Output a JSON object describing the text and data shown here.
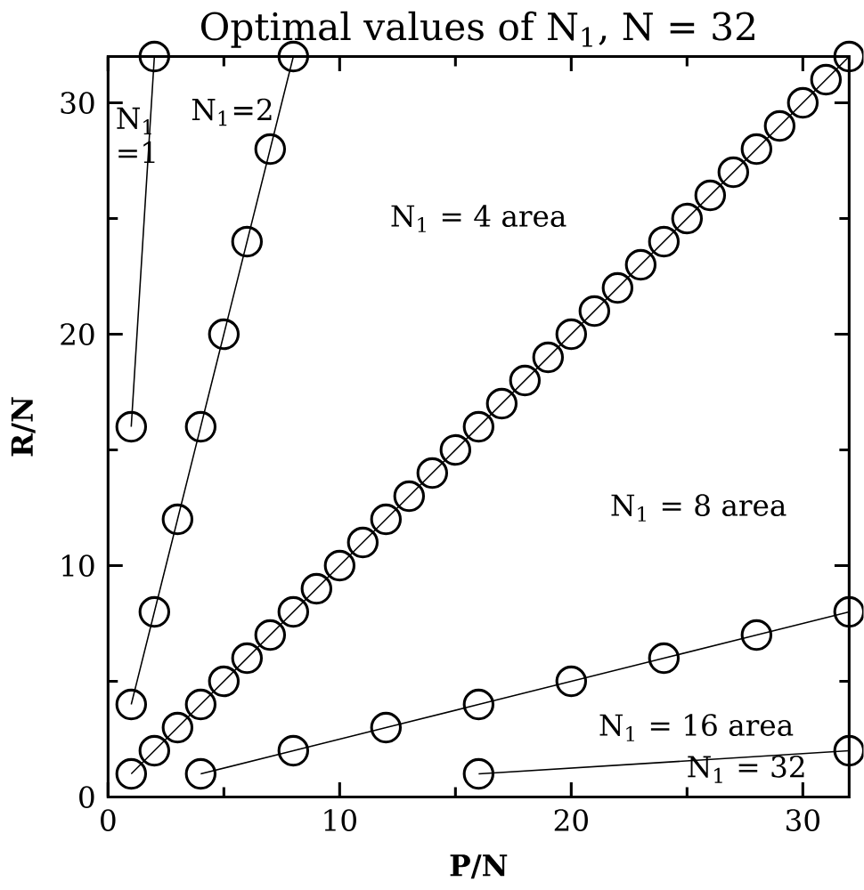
{
  "chart_data": {
    "type": "line",
    "title": "Optimal values of N$_{1}$, N = 32",
    "xlabel": "P/N",
    "ylabel": "R/N",
    "xlim": [
      0,
      32
    ],
    "ylim": [
      0,
      32
    ],
    "xticks": [
      0,
      10,
      20,
      30
    ],
    "yticks": [
      0,
      10,
      20,
      30
    ],
    "marker": "circle",
    "line_style": "solid",
    "grid": false,
    "series": [
      {
        "color": "#000000",
        "x": [
          1,
          2
        ],
        "values": [
          16,
          32
        ]
      },
      {
        "color": "#000000",
        "x": [
          1,
          2,
          3,
          4,
          5,
          6,
          7,
          8
        ],
        "values": [
          4,
          8,
          12,
          16,
          20,
          24,
          28,
          32
        ]
      },
      {
        "color": "#000000",
        "x": [
          1,
          2,
          3,
          4,
          5,
          6,
          7,
          8,
          9,
          10,
          11,
          12,
          13,
          14,
          15,
          16,
          17,
          18,
          19,
          20,
          21,
          22,
          23,
          24,
          25,
          26,
          27,
          28,
          29,
          30,
          31,
          32
        ],
        "values": [
          1,
          2,
          3,
          4,
          5,
          6,
          7,
          8,
          9,
          10,
          11,
          12,
          13,
          14,
          15,
          16,
          17,
          18,
          19,
          20,
          21,
          22,
          23,
          24,
          25,
          26,
          27,
          28,
          29,
          30,
          31,
          32
        ]
      },
      {
        "color": "#000000",
        "x": [
          4,
          8,
          12,
          16,
          20,
          24,
          28,
          32
        ],
        "values": [
          1,
          2,
          3,
          4,
          5,
          6,
          7,
          8
        ]
      },
      {
        "color": "#000000",
        "x": [
          16,
          32
        ],
        "values": [
          1,
          2
        ]
      }
    ],
    "annotations": [
      "N$_{1}$ =1",
      "N$_{1}$=2",
      "N$_{1}$ = 4 area",
      "N$_{1}$ = 8 area",
      "N$_{1}$ = 16 area",
      "N$_{1}$ = 32"
    ]
  }
}
